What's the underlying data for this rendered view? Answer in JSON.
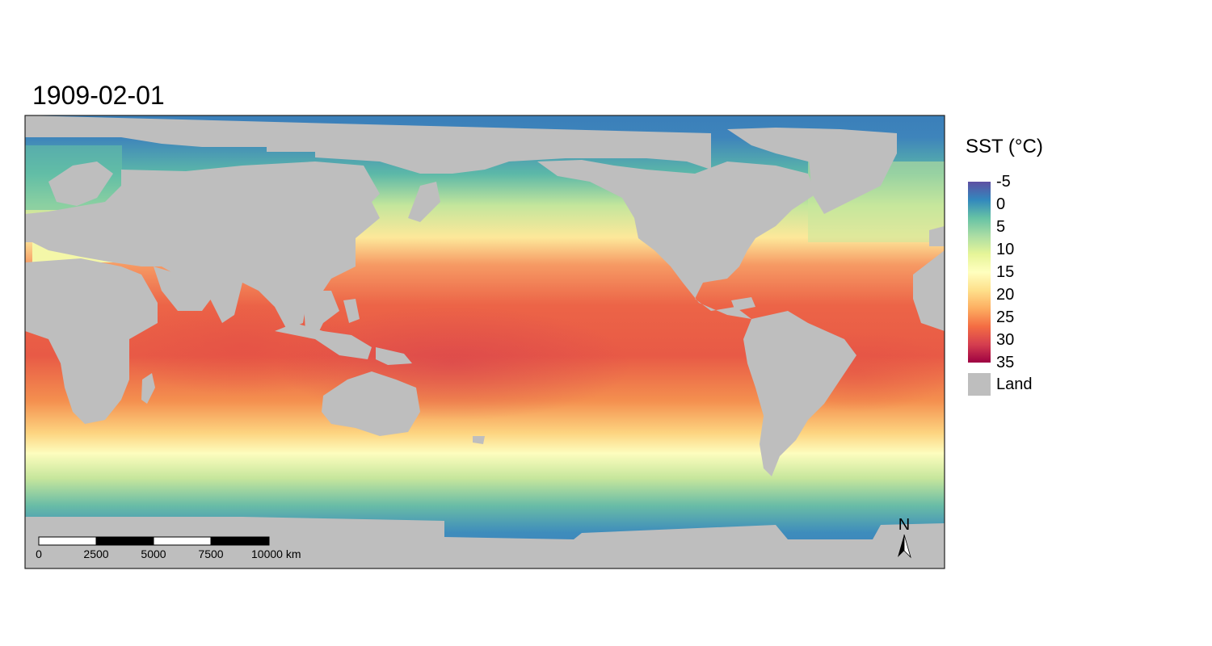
{
  "title": "1909-02-01",
  "legend": {
    "title": "SST (°C)",
    "ticks": [
      "-5",
      "0",
      "5",
      "10",
      "15",
      "20",
      "25",
      "30",
      "35"
    ],
    "land_label": "Land",
    "land_color": "#bebebe",
    "palette": [
      "#5e4fa2",
      "#3288bd",
      "#66c2a5",
      "#abdda4",
      "#e6f598",
      "#ffffbf",
      "#fee08b",
      "#fdae61",
      "#f46d43",
      "#d53e4f",
      "#9e0142"
    ]
  },
  "scale_bar": {
    "labels": [
      "0",
      "2500",
      "5000",
      "7500",
      "10000 km"
    ]
  },
  "north_arrow": {
    "label": "N"
  }
}
